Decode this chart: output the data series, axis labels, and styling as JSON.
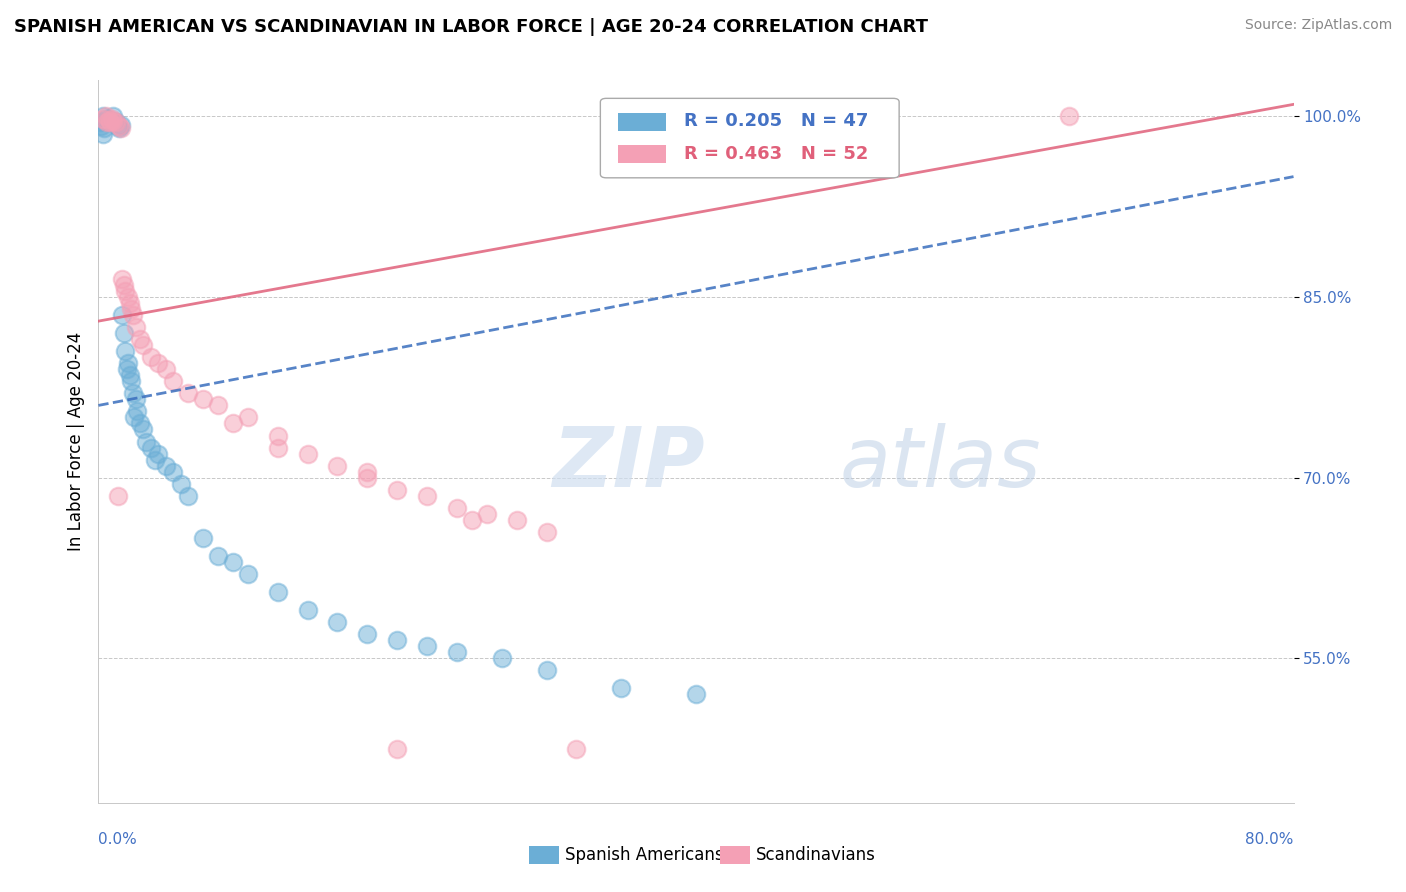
{
  "title": "SPANISH AMERICAN VS SCANDINAVIAN IN LABOR FORCE | AGE 20-24 CORRELATION CHART",
  "source": "Source: ZipAtlas.com",
  "ylabel": "In Labor Force | Age 20-24",
  "legend_blue_r": "R = 0.205",
  "legend_blue_n": "N = 47",
  "legend_pink_r": "R = 0.463",
  "legend_pink_n": "N = 52",
  "legend_label_blue": "Spanish Americans",
  "legend_label_pink": "Scandinavians",
  "blue_color": "#6baed6",
  "pink_color": "#f4a0b5",
  "blue_line_color": "#3a6ebd",
  "pink_line_color": "#e0607a",
  "xmin": 0.0,
  "xmax": 80.0,
  "ymin": 43.0,
  "ymax": 103.0,
  "y_ticks": [
    55.0,
    70.0,
    85.0,
    100.0
  ],
  "spanish_x": [
    0.3,
    0.5,
    0.6,
    0.7,
    0.8,
    1.0,
    1.1,
    1.2,
    1.3,
    1.4,
    1.5,
    1.6,
    1.7,
    1.8,
    2.0,
    2.1,
    2.2,
    2.3,
    2.5,
    2.6,
    2.8,
    3.0,
    3.2,
    3.5,
    4.0,
    4.5,
    5.0,
    6.0,
    7.0,
    8.0,
    10.0,
    12.0,
    14.0,
    16.0,
    20.0,
    24.0,
    30.0,
    35.0
  ],
  "spanish_y": [
    100.0,
    99.8,
    99.5,
    99.7,
    99.5,
    100.0,
    99.5,
    99.5,
    99.2,
    99.0,
    99.3,
    83.5,
    82.0,
    80.5,
    79.5,
    78.5,
    78.0,
    77.0,
    76.5,
    75.5,
    74.5,
    74.0,
    73.0,
    72.5,
    72.0,
    71.0,
    70.5,
    68.5,
    65.0,
    63.5,
    62.0,
    60.5,
    59.0,
    58.0,
    56.5,
    55.5,
    54.0,
    52.5
  ],
  "scand_x": [
    0.3,
    0.5,
    0.6,
    0.7,
    0.8,
    0.9,
    1.0,
    1.2,
    1.4,
    1.5,
    1.6,
    1.7,
    1.8,
    2.0,
    2.1,
    2.2,
    2.3,
    2.5,
    2.8,
    3.0,
    3.5,
    4.0,
    5.0,
    6.0,
    7.0,
    8.0,
    10.0,
    12.0,
    14.0,
    16.0,
    18.0,
    20.0,
    22.0,
    24.0,
    26.0,
    28.0,
    30.0,
    32.0,
    65.0
  ],
  "scand_y": [
    99.8,
    100.0,
    99.5,
    99.7,
    99.5,
    99.8,
    99.6,
    99.5,
    99.2,
    99.0,
    86.5,
    86.0,
    85.5,
    85.0,
    84.5,
    84.0,
    83.5,
    82.5,
    81.5,
    81.0,
    80.0,
    79.5,
    78.0,
    77.0,
    76.5,
    76.0,
    75.0,
    73.5,
    72.0,
    71.0,
    70.5,
    69.0,
    68.5,
    67.5,
    67.0,
    66.5,
    65.5,
    47.5,
    100.0
  ],
  "blue_extra_x": [
    0.1,
    0.2,
    0.3,
    0.4,
    1.9,
    2.4,
    3.8,
    5.5,
    9.0,
    18.0,
    22.0,
    27.0,
    40.0
  ],
  "blue_extra_y": [
    99.5,
    99.2,
    98.5,
    99.0,
    79.0,
    75.0,
    71.5,
    69.5,
    63.0,
    57.0,
    56.0,
    55.0,
    52.0
  ],
  "pink_extra_x": [
    1.3,
    4.5,
    9.0,
    12.0,
    20.0,
    25.0,
    18.0
  ],
  "pink_extra_y": [
    68.5,
    79.0,
    74.5,
    72.5,
    47.5,
    66.5,
    70.0
  ]
}
